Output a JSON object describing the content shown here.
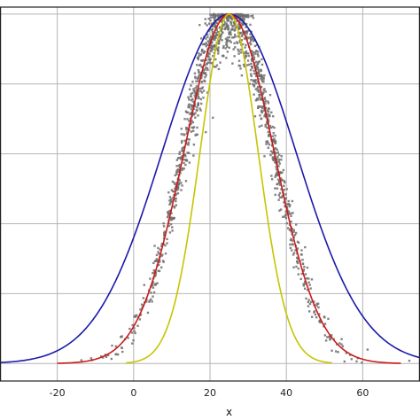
{
  "chart_data": {
    "type": "line",
    "xlabel": "x",
    "ylabel": "",
    "title": "",
    "xlim": [
      -35,
      75
    ],
    "ylim": [
      -0.05,
      1.02
    ],
    "xticks": [
      -20,
      0,
      20,
      40,
      60
    ],
    "xtick_labels": [
      "-20",
      "0",
      "20",
      "40",
      "60"
    ],
    "yticks": [
      0.0,
      0.2,
      0.4,
      0.6,
      0.8,
      1.0
    ],
    "grid": true,
    "legend": "none",
    "series": [
      {
        "kind": "line",
        "color": "#1a1aaa",
        "peak_x": 25,
        "peak_y": 1.0,
        "sigma": 17.5,
        "x_start": -35,
        "x_end": 75
      },
      {
        "kind": "line",
        "color": "#cc1a1a",
        "peak_x": 25,
        "peak_y": 1.0,
        "sigma": 11.8,
        "x_start": -20,
        "x_end": 70
      },
      {
        "kind": "line",
        "color": "#c8c400",
        "peak_x": 25,
        "peak_y": 1.0,
        "sigma": 7.6,
        "x_start": -2,
        "x_end": 52
      },
      {
        "kind": "scatter",
        "color": "#6e6e6e",
        "peak_x": 25,
        "sigma": 11.8,
        "count": 1400,
        "x_range": [
          -35,
          73
        ]
      }
    ]
  }
}
